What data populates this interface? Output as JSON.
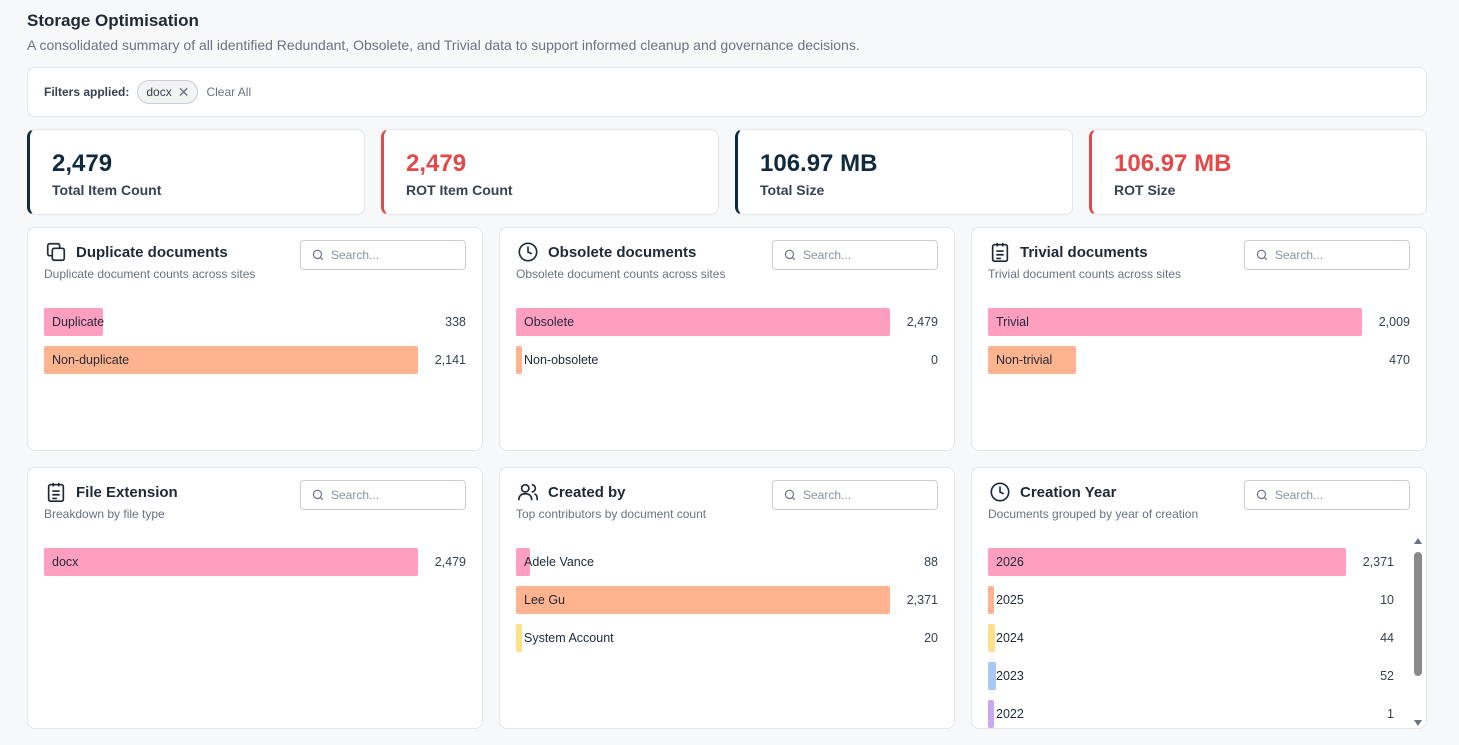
{
  "page": {
    "title": "Storage Optimisation",
    "subtitle": "A consolidated summary of all identified Redundant, Obsolete, and Trivial data to support informed cleanup and governance decisions."
  },
  "filters": {
    "label": "Filters applied:",
    "chips": [
      "docx"
    ],
    "clear_all": "Clear All"
  },
  "kpis": [
    {
      "value": "2,479",
      "label": "Total Item Count",
      "accent": "#0f2a3d"
    },
    {
      "value": "2,479",
      "label": "ROT Item Count",
      "accent": "#e44848"
    },
    {
      "value": "106.97 MB",
      "label": "Total Size",
      "accent": "#0f2a3d"
    },
    {
      "value": "106.97 MB",
      "label": "ROT Size",
      "accent": "#e44848"
    }
  ],
  "search_placeholder": "Search...",
  "cards": {
    "duplicate": {
      "title": "Duplicate documents",
      "subtitle": "Duplicate document counts across sites",
      "icon": "copy-icon",
      "rows": [
        {
          "label": "Duplicate",
          "count": "338",
          "fraction": 0.158,
          "color": "#ff9fc0"
        },
        {
          "label": "Non-duplicate",
          "count": "2,141",
          "fraction": 1.0,
          "color": "#ffb38f"
        }
      ]
    },
    "obsolete": {
      "title": "Obsolete documents",
      "subtitle": "Obsolete document counts across sites",
      "icon": "clock-icon",
      "rows": [
        {
          "label": "Obsolete",
          "count": "2,479",
          "fraction": 1.0,
          "color": "#ff9fc0"
        },
        {
          "label": "Non-obsolete",
          "count": "0",
          "fraction": 0.0,
          "color": "#ffb38f"
        }
      ]
    },
    "trivial": {
      "title": "Trivial documents",
      "subtitle": "Trivial document counts across sites",
      "icon": "clipboard-icon",
      "rows": [
        {
          "label": "Trivial",
          "count": "2,009",
          "fraction": 1.0,
          "color": "#ff9fc0"
        },
        {
          "label": "Non-trivial",
          "count": "470",
          "fraction": 0.234,
          "color": "#ffb38f"
        }
      ]
    },
    "extension": {
      "title": "File Extension",
      "subtitle": "Breakdown by file type",
      "icon": "clipboard-icon",
      "rows": [
        {
          "label": "docx",
          "count": "2,479",
          "fraction": 1.0,
          "color": "#ff9fc0"
        }
      ]
    },
    "created_by": {
      "title": "Created by",
      "subtitle": "Top contributors by document count",
      "icon": "users-icon",
      "rows": [
        {
          "label": "Adele Vance",
          "count": "88",
          "fraction": 0.037,
          "color": "#ff9fc0"
        },
        {
          "label": "Lee Gu",
          "count": "2,371",
          "fraction": 1.0,
          "color": "#ffb38f"
        },
        {
          "label": "System Account",
          "count": "20",
          "fraction": 0.008,
          "color": "#ffe08a"
        }
      ]
    },
    "creation_year": {
      "title": "Creation Year",
      "subtitle": "Documents grouped by year of creation",
      "icon": "clock-icon",
      "rows": [
        {
          "label": "2026",
          "count": "2,371",
          "fraction": 1.0,
          "color": "#ff9fc0"
        },
        {
          "label": "2025",
          "count": "10",
          "fraction": 0.004,
          "color": "#ffb38f"
        },
        {
          "label": "2024",
          "count": "44",
          "fraction": 0.019,
          "color": "#ffe08a"
        },
        {
          "label": "2023",
          "count": "52",
          "fraction": 0.022,
          "color": "#a9c7f7"
        },
        {
          "label": "2022",
          "count": "1",
          "fraction": 0.0,
          "color": "#c7a8f2"
        }
      ]
    }
  }
}
